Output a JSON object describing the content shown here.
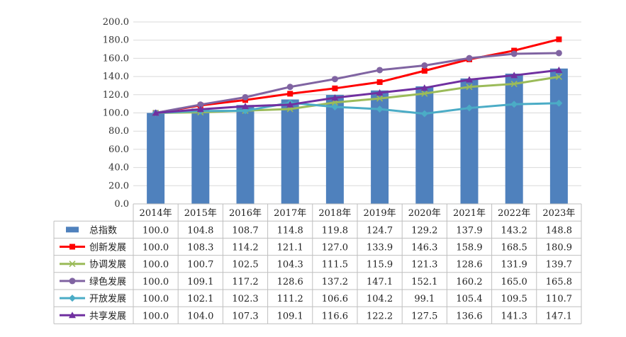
{
  "chart_data": {
    "type": "bar+line",
    "ylim": [
      0,
      200
    ],
    "ytick_labels": [
      "0.0",
      "20.0",
      "40.0",
      "60.0",
      "80.0",
      "100.0",
      "120.0",
      "140.0",
      "160.0",
      "180.0",
      "200.0"
    ],
    "categories": [
      "2014年",
      "2015年",
      "2016年",
      "2017年",
      "2018年",
      "2019年",
      "2020年",
      "2021年",
      "2022年",
      "2023年"
    ],
    "grid": true,
    "legend": "data-table",
    "series": [
      {
        "name": "总指数",
        "kind": "bar",
        "marker": "bar",
        "color": "#4F81BD",
        "values": [
          100.0,
          104.8,
          108.7,
          114.8,
          119.8,
          124.7,
          129.2,
          137.9,
          143.2,
          148.8
        ]
      },
      {
        "name": "创新发展",
        "kind": "line",
        "marker": "square",
        "color": "#FF0000",
        "values": [
          100.0,
          108.3,
          114.2,
          121.1,
          127.0,
          133.9,
          146.3,
          158.9,
          168.5,
          180.9
        ]
      },
      {
        "name": "协调发展",
        "kind": "line",
        "marker": "x",
        "color": "#9BBB59",
        "values": [
          100.0,
          100.7,
          102.5,
          104.3,
          111.5,
          115.9,
          121.3,
          128.6,
          131.9,
          139.7
        ]
      },
      {
        "name": "绿色发展",
        "kind": "line",
        "marker": "circle",
        "color": "#8064A2",
        "values": [
          100.0,
          109.1,
          117.2,
          128.6,
          137.2,
          147.1,
          152.1,
          160.2,
          165.0,
          165.8
        ]
      },
      {
        "name": "开放发展",
        "kind": "line",
        "marker": "diamond",
        "color": "#4BACC6",
        "values": [
          100.0,
          102.1,
          102.3,
          111.2,
          106.6,
          104.2,
          99.1,
          105.4,
          109.5,
          110.7
        ]
      },
      {
        "name": "共享发展",
        "kind": "line",
        "marker": "triangle",
        "color": "#7030A0",
        "values": [
          100.0,
          104.0,
          107.3,
          109.1,
          116.6,
          122.2,
          127.5,
          136.6,
          141.3,
          147.1
        ]
      }
    ]
  }
}
